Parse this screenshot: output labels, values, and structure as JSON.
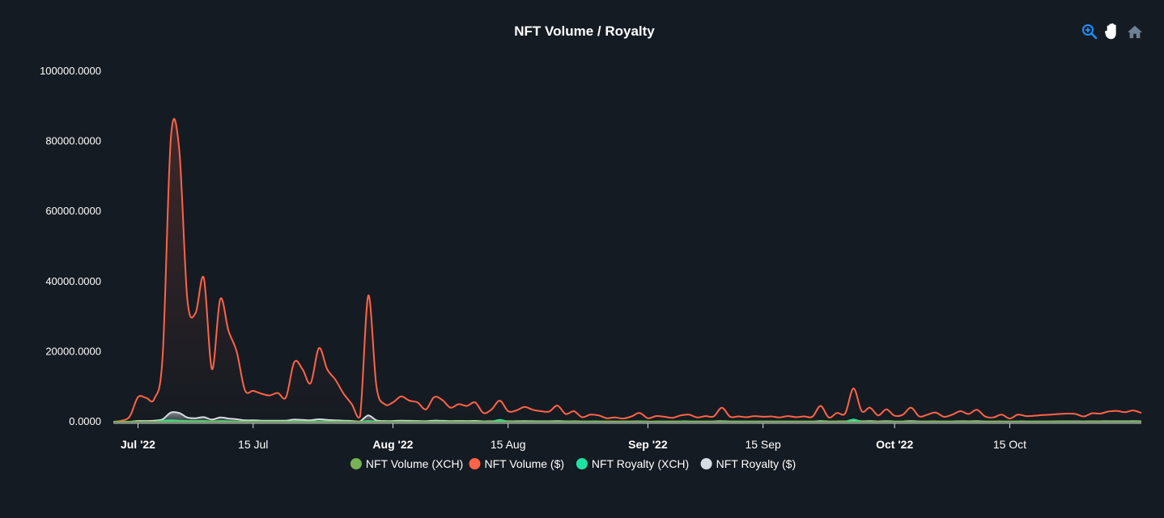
{
  "toolbar": {
    "icons": [
      "zoom-in-icon",
      "pan-hand-icon",
      "home-reset-icon"
    ],
    "active_color": "#1e90ff",
    "inactive_color": "#6e8192"
  },
  "chart_data": {
    "type": "area",
    "title": "NFT Volume / Royalty",
    "xlabel": "",
    "ylabel": "",
    "x_range": [
      "2022-06-28",
      "2022-10-31"
    ],
    "ylim": [
      0,
      100000
    ],
    "y_ticks": [
      0,
      20000,
      40000,
      60000,
      80000,
      100000
    ],
    "y_tick_labels": [
      "0.0000",
      "20000.0000",
      "40000.0000",
      "60000.0000",
      "80000.0000",
      "100000.0000"
    ],
    "x_ticks": [
      {
        "date": "2022-07-01",
        "label": "Jul '22",
        "bold": true
      },
      {
        "date": "2022-07-15",
        "label": "15 Jul",
        "bold": false
      },
      {
        "date": "2022-08-01",
        "label": "Aug '22",
        "bold": true
      },
      {
        "date": "2022-08-15",
        "label": "15 Aug",
        "bold": false
      },
      {
        "date": "2022-09-01",
        "label": "Sep '22",
        "bold": true
      },
      {
        "date": "2022-09-15",
        "label": "15 Sep",
        "bold": false
      },
      {
        "date": "2022-10-01",
        "label": "Oct '22",
        "bold": true
      },
      {
        "date": "2022-10-15",
        "label": "15 Oct",
        "bold": false
      }
    ],
    "grid": false,
    "legend_position": "bottom-center",
    "x": [
      "2022-06-28",
      "2022-06-29",
      "2022-06-30",
      "2022-07-01",
      "2022-07-02",
      "2022-07-03",
      "2022-07-04",
      "2022-07-05",
      "2022-07-06",
      "2022-07-07",
      "2022-07-08",
      "2022-07-09",
      "2022-07-10",
      "2022-07-11",
      "2022-07-12",
      "2022-07-13",
      "2022-07-14",
      "2022-07-15",
      "2022-07-16",
      "2022-07-17",
      "2022-07-18",
      "2022-07-19",
      "2022-07-20",
      "2022-07-21",
      "2022-07-22",
      "2022-07-23",
      "2022-07-24",
      "2022-07-25",
      "2022-07-26",
      "2022-07-27",
      "2022-07-28",
      "2022-07-29",
      "2022-07-30",
      "2022-07-31",
      "2022-08-01",
      "2022-08-02",
      "2022-08-03",
      "2022-08-04",
      "2022-08-05",
      "2022-08-06",
      "2022-08-07",
      "2022-08-08",
      "2022-08-09",
      "2022-08-10",
      "2022-08-11",
      "2022-08-12",
      "2022-08-13",
      "2022-08-14",
      "2022-08-15",
      "2022-08-16",
      "2022-08-17",
      "2022-08-18",
      "2022-08-19",
      "2022-08-20",
      "2022-08-21",
      "2022-08-22",
      "2022-08-23",
      "2022-08-24",
      "2022-08-25",
      "2022-08-26",
      "2022-08-27",
      "2022-08-28",
      "2022-08-29",
      "2022-08-30",
      "2022-08-31",
      "2022-09-01",
      "2022-09-02",
      "2022-09-03",
      "2022-09-04",
      "2022-09-05",
      "2022-09-06",
      "2022-09-07",
      "2022-09-08",
      "2022-09-09",
      "2022-09-10",
      "2022-09-11",
      "2022-09-12",
      "2022-09-13",
      "2022-09-14",
      "2022-09-15",
      "2022-09-16",
      "2022-09-17",
      "2022-09-18",
      "2022-09-19",
      "2022-09-20",
      "2022-09-21",
      "2022-09-22",
      "2022-09-23",
      "2022-09-24",
      "2022-09-25",
      "2022-09-26",
      "2022-09-27",
      "2022-09-28",
      "2022-09-29",
      "2022-09-30",
      "2022-10-01",
      "2022-10-02",
      "2022-10-03",
      "2022-10-04",
      "2022-10-05",
      "2022-10-06",
      "2022-10-07",
      "2022-10-08",
      "2022-10-09",
      "2022-10-10",
      "2022-10-11",
      "2022-10-12",
      "2022-10-13",
      "2022-10-14",
      "2022-10-15",
      "2022-10-16",
      "2022-10-17",
      "2022-10-18",
      "2022-10-19",
      "2022-10-20",
      "2022-10-21",
      "2022-10-22",
      "2022-10-23",
      "2022-10-24",
      "2022-10-25",
      "2022-10-26",
      "2022-10-27",
      "2022-10-28",
      "2022-10-29",
      "2022-10-30",
      "2022-10-31"
    ],
    "series": [
      {
        "name": "NFT Volume (XCH)",
        "color": "#77b255",
        "values": [
          0,
          0,
          0,
          0,
          0,
          0,
          0,
          0,
          0,
          0,
          0,
          0,
          0,
          0,
          0,
          0,
          0,
          0,
          0,
          0,
          0,
          0,
          0,
          0,
          0,
          0,
          0,
          0,
          0,
          0,
          0,
          0,
          0,
          0,
          0,
          0,
          0,
          0,
          0,
          0,
          0,
          0,
          0,
          0,
          0,
          0,
          0,
          0,
          0,
          0,
          0,
          0,
          0,
          0,
          0,
          0,
          0,
          0,
          0,
          0,
          0,
          0,
          0,
          0,
          0,
          0,
          0,
          0,
          0,
          0,
          0,
          0,
          0,
          0,
          0,
          0,
          0,
          0,
          0,
          0,
          0,
          0,
          0,
          0,
          0,
          0,
          0,
          0,
          0,
          0,
          0,
          0,
          0,
          0,
          0,
          0,
          0,
          0,
          0,
          0,
          0,
          0,
          0,
          0,
          0,
          0,
          0,
          0,
          0,
          0,
          0,
          0,
          0,
          0,
          0,
          0,
          0,
          0,
          0,
          0,
          0,
          0,
          0,
          0,
          0,
          0
        ]
      },
      {
        "name": "NFT Volume ($)",
        "color": "#ff6347",
        "values": [
          0,
          300,
          1500,
          7000,
          6800,
          6600,
          19000,
          81000,
          78000,
          35000,
          31000,
          41000,
          15000,
          35000,
          26000,
          20000,
          9000,
          8800,
          8000,
          7500,
          8200,
          7000,
          17000,
          15000,
          11000,
          21000,
          15000,
          12000,
          8000,
          5000,
          1500,
          36000,
          10000,
          5000,
          5500,
          7200,
          6000,
          5500,
          3500,
          7000,
          6200,
          4000,
          5000,
          4500,
          5500,
          2500,
          3500,
          6000,
          3000,
          3200,
          4200,
          3400,
          3000,
          2900,
          4600,
          2200,
          3000,
          1300,
          2000,
          1800,
          1000,
          1200,
          900,
          1500,
          2500,
          1000,
          1600,
          1400,
          1100,
          1800,
          2000,
          1200,
          1600,
          1500,
          4000,
          1400,
          1500,
          1300,
          1600,
          1400,
          1500,
          1200,
          1600,
          1300,
          1500,
          1400,
          4500,
          1200,
          2500,
          2400,
          9500,
          3000,
          4000,
          1800,
          3500,
          1700,
          2000,
          4000,
          1500,
          2000,
          2600,
          1400,
          2000,
          3000,
          2200,
          3400,
          1500,
          1200,
          2000,
          900,
          2000,
          1600,
          1700,
          1900,
          2000,
          2200,
          2300,
          2200,
          1500,
          2400,
          2300,
          2900,
          3100,
          2700,
          3200,
          2500
        ]
      },
      {
        "name": "NFT Royalty (XCH)",
        "color": "#1ee3a0",
        "values": [
          0,
          0,
          0,
          0,
          0,
          0,
          300,
          400,
          300,
          200,
          200,
          200,
          100,
          200,
          150,
          100,
          80,
          60,
          50,
          40,
          60,
          40,
          100,
          80,
          60,
          100,
          70,
          50,
          40,
          30,
          10,
          200,
          60,
          30,
          30,
          40,
          30,
          30,
          20,
          40,
          35,
          25,
          30,
          25,
          30,
          15,
          20,
          500,
          20,
          20,
          25,
          20,
          20,
          15,
          25,
          15,
          20,
          10,
          15,
          12,
          8,
          8,
          6,
          10,
          15,
          8,
          10,
          8,
          8,
          10,
          12,
          8,
          10,
          8,
          20,
          8,
          8,
          8,
          8,
          8,
          8,
          6,
          8,
          8,
          8,
          8,
          20,
          8,
          10,
          10,
          600,
          15,
          20,
          10,
          15,
          8,
          10,
          20,
          8,
          10,
          12,
          8,
          10,
          15,
          10,
          15,
          8,
          6,
          10,
          5,
          10,
          8,
          8,
          10,
          10,
          10,
          12,
          10,
          8,
          10,
          10,
          12,
          15,
          12,
          15,
          12
        ]
      },
      {
        "name": "NFT Royalty ($)",
        "color": "#d8dde3",
        "values": [
          0,
          0,
          0,
          200,
          200,
          300,
          700,
          2600,
          2500,
          1200,
          1000,
          1300,
          600,
          1200,
          900,
          700,
          400,
          400,
          300,
          300,
          300,
          300,
          600,
          500,
          400,
          700,
          500,
          400,
          300,
          200,
          100,
          1800,
          400,
          200,
          200,
          300,
          250,
          200,
          150,
          300,
          250,
          180,
          200,
          180,
          220,
          100,
          150,
          200,
          120,
          130,
          170,
          140,
          120,
          120,
          180,
          90,
          120,
          60,
          80,
          70,
          40,
          50,
          40,
          60,
          100,
          40,
          60,
          55,
          45,
          70,
          80,
          50,
          65,
          60,
          150,
          55,
          60,
          50,
          65,
          55,
          60,
          50,
          65,
          55,
          60,
          55,
          170,
          50,
          100,
          95,
          350,
          120,
          160,
          70,
          140,
          70,
          80,
          160,
          60,
          80,
          100,
          55,
          80,
          120,
          90,
          130,
          60,
          50,
          80,
          40,
          80,
          65,
          70,
          75,
          80,
          90,
          95,
          90,
          60,
          95,
          90,
          115,
          125,
          110,
          130,
          100
        ]
      }
    ]
  }
}
